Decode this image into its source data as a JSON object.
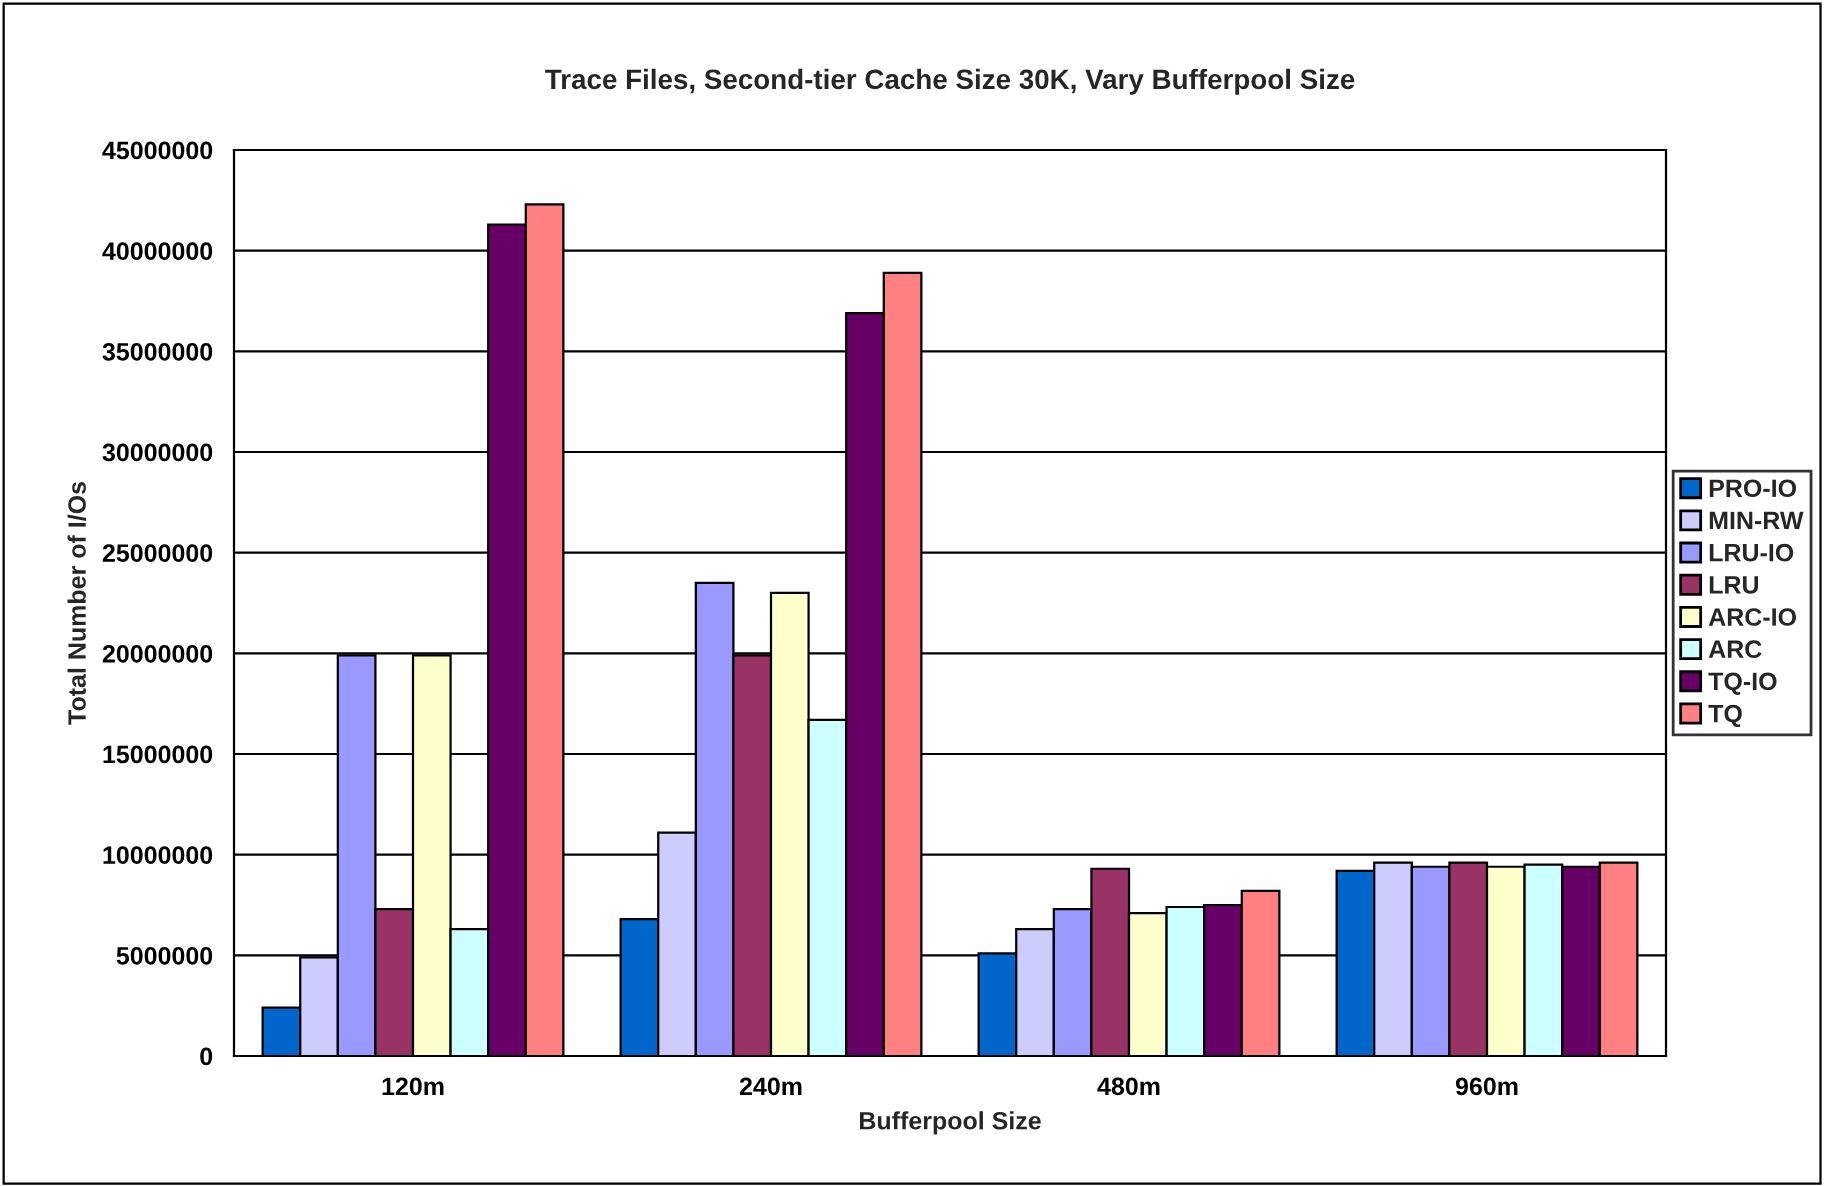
{
  "chart_data": {
    "type": "bar",
    "title": "Trace Files, Second-tier Cache Size 30K, Vary Bufferpool Size",
    "xlabel": "Bufferpool Size",
    "ylabel": "Total Number of I/Os",
    "categories": [
      "120m",
      "240m",
      "480m",
      "960m"
    ],
    "series": [
      {
        "name": "PRO-IO",
        "color": "#0066cc",
        "values": [
          2400000,
          6800000,
          5100000,
          9200000
        ]
      },
      {
        "name": "MIN-RW",
        "color": "#ccccff",
        "values": [
          4900000,
          11100000,
          6300000,
          9600000
        ]
      },
      {
        "name": "LRU-IO",
        "color": "#9999ff",
        "values": [
          19900000,
          23500000,
          7300000,
          9400000
        ]
      },
      {
        "name": "LRU",
        "color": "#993366",
        "values": [
          7300000,
          19900000,
          9300000,
          9600000
        ]
      },
      {
        "name": "ARC-IO",
        "color": "#ffffcc",
        "values": [
          19900000,
          23000000,
          7100000,
          9400000
        ]
      },
      {
        "name": "ARC",
        "color": "#ccffff",
        "values": [
          6300000,
          16700000,
          7400000,
          9500000
        ]
      },
      {
        "name": "TQ-IO",
        "color": "#660066",
        "values": [
          41300000,
          36900000,
          7500000,
          9400000
        ]
      },
      {
        "name": "TQ",
        "color": "#ff8080",
        "values": [
          42300000,
          38900000,
          8200000,
          9600000
        ]
      }
    ],
    "ylim": [
      0,
      45000000
    ],
    "yticks": [
      0,
      5000000,
      10000000,
      15000000,
      20000000,
      25000000,
      30000000,
      35000000,
      40000000,
      45000000
    ],
    "grid": "y",
    "legend": "right"
  }
}
